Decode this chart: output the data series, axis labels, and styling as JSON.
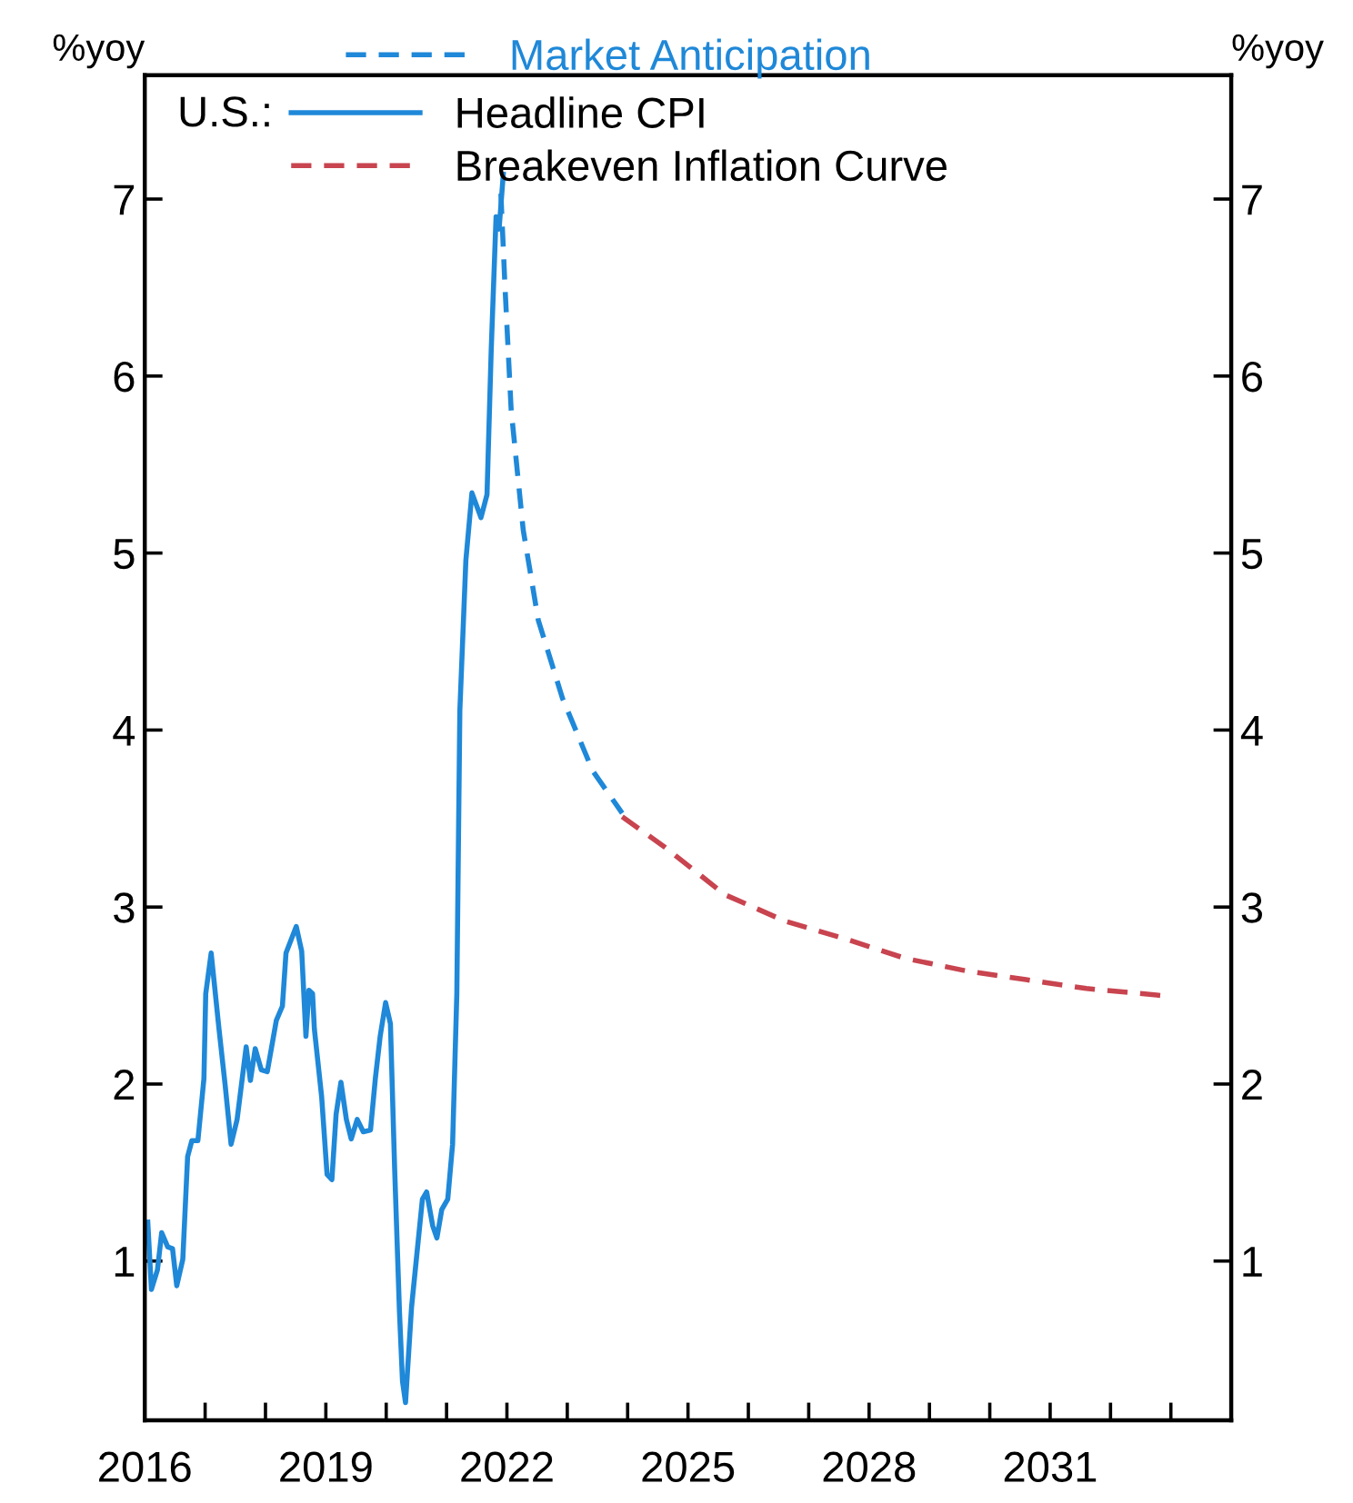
{
  "chart_data": {
    "type": "line",
    "ylabel": "%yoy",
    "y2label": "%yoy",
    "legend_title": "U.S.:",
    "xlim": [
      2016,
      2034
    ],
    "xticks": [
      2016,
      {
        "value": 2017,
        "label": null
      },
      {
        "value": 2018,
        "label": null
      },
      2019,
      {
        "value": 2020,
        "label": null
      },
      {
        "value": 2021,
        "label": null
      },
      2022,
      {
        "value": 2023,
        "label": null
      },
      {
        "value": 2024,
        "label": null
      },
      2025,
      {
        "value": 2026,
        "label": null
      },
      {
        "value": 2027,
        "label": null
      },
      2028,
      {
        "value": 2029,
        "label": null
      },
      {
        "value": 2030,
        "label": null
      },
      2031,
      {
        "value": 2032,
        "label": null
      },
      {
        "value": 2033,
        "label": null
      }
    ],
    "ylim": [
      0.1,
      7.7
    ],
    "yticks": [
      1,
      2,
      3,
      4,
      5,
      6,
      7
    ],
    "y2lim": [
      0.1,
      7.7
    ],
    "y2ticks": [
      1,
      2,
      3,
      4,
      5,
      6,
      7
    ],
    "grid": false,
    "legend": "top left",
    "series": [
      {
        "name": "Headline CPI",
        "color": "#1f88d8",
        "line_style": "solid",
        "x": [
          2016.05,
          2016.11,
          2016.21,
          2016.28,
          2016.38,
          2016.46,
          2016.53,
          2016.63,
          2016.71,
          2016.78,
          2016.88,
          2016.98,
          2017.01,
          2017.1,
          2017.23,
          2017.33,
          2017.43,
          2017.53,
          2017.68,
          2017.75,
          2017.83,
          2017.93,
          2018.03,
          2018.18,
          2018.28,
          2018.34,
          2018.51,
          2018.6,
          2018.67,
          2018.72,
          2018.78,
          2018.81,
          2018.93,
          2019.02,
          2019.1,
          2019.17,
          2019.25,
          2019.34,
          2019.42,
          2019.52,
          2019.62,
          2019.74,
          2019.82,
          2019.9,
          2019.99,
          2020.07,
          2020.14,
          2020.22,
          2020.27,
          2020.32,
          2020.42,
          2020.52,
          2020.6,
          2020.67,
          2020.77,
          2020.84,
          2020.92,
          2021.02,
          2021.1,
          2021.17,
          2021.22,
          2021.32,
          2021.42,
          2021.57,
          2021.67,
          2021.74,
          2021.82,
          2021.87,
          2021.94
        ],
        "values": [
          1.22,
          0.84,
          0.95,
          1.16,
          1.08,
          1.07,
          0.86,
          1.01,
          1.59,
          1.68,
          1.68,
          2.03,
          2.51,
          2.74,
          2.31,
          2.0,
          1.66,
          1.8,
          2.21,
          2.02,
          2.2,
          2.08,
          2.07,
          2.36,
          2.44,
          2.74,
          2.89,
          2.75,
          2.27,
          2.53,
          2.51,
          2.31,
          1.93,
          1.49,
          1.46,
          1.83,
          2.01,
          1.8,
          1.69,
          1.8,
          1.73,
          1.74,
          2.03,
          2.27,
          2.46,
          2.34,
          1.52,
          0.71,
          0.32,
          0.2,
          0.74,
          1.08,
          1.35,
          1.39,
          1.2,
          1.13,
          1.29,
          1.35,
          1.66,
          2.51,
          4.11,
          4.96,
          5.34,
          5.2,
          5.33,
          6.15,
          6.9,
          6.83,
          7.14
        ]
      },
      {
        "name": "Market Anticipation",
        "color": "#1f88d8",
        "line_style": "dashed",
        "x": [
          2021.9,
          2021.97,
          2022.07,
          2022.27,
          2022.52,
          2022.92,
          2023.42,
          2023.91
        ],
        "values": [
          7.03,
          6.49,
          5.81,
          5.13,
          4.62,
          4.18,
          3.77,
          3.53
        ]
      },
      {
        "name": "Breakeven Inflation Curve",
        "color": "#c8444f",
        "line_style": "dashed",
        "x": [
          2023.91,
          2024.61,
          2025.61,
          2026.61,
          2027.61,
          2028.6,
          2029.6,
          2030.6,
          2031.6,
          2032.85
        ],
        "values": [
          3.51,
          3.34,
          3.07,
          2.92,
          2.82,
          2.71,
          2.64,
          2.59,
          2.54,
          2.5
        ]
      }
    ]
  }
}
